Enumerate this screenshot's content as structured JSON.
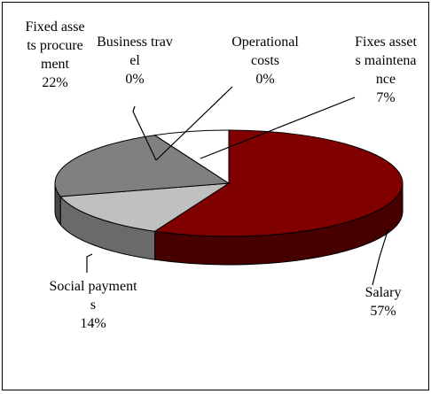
{
  "chart_data": {
    "type": "pie3d",
    "categories": [
      "Salary",
      "Social payments",
      "Fixed assets procurement",
      "Business travel",
      "Operational costs",
      "Fixes assets maintenance"
    ],
    "values": [
      57,
      14,
      22,
      0,
      0,
      7
    ],
    "value_labels": [
      "57%",
      "14%",
      "22%",
      "0%",
      "0%",
      "7%"
    ],
    "colors": [
      "#800000",
      "#c0c0c0",
      "#808080",
      "#ffffff",
      "#ffffff",
      "#ffffff"
    ]
  }
}
